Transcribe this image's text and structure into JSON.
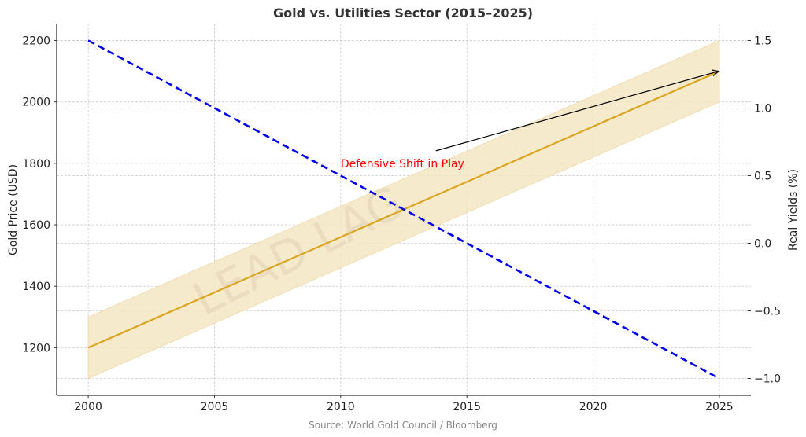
{
  "chart_data": {
    "type": "line",
    "title": "Gold vs. Utilities Sector (2015–2025)",
    "xlabel": "",
    "ylabel_left": "Gold Price (USD)",
    "ylabel_right": "Real Yields (%)",
    "xlim": [
      1998.75,
      2026.25
    ],
    "ylim_left": [
      1045,
      2255
    ],
    "ylim_right": [
      -1.125,
      1.625
    ],
    "x_ticks": [
      2000,
      2005,
      2010,
      2015,
      2020,
      2025
    ],
    "x_tick_labels": [
      "2000",
      "2005",
      "2010",
      "2015",
      "2020",
      "2025"
    ],
    "y_left_ticks": [
      1200,
      1400,
      1600,
      1800,
      2000,
      2200
    ],
    "y_left_tick_labels": [
      "1200",
      "1400",
      "1600",
      "1800",
      "2000",
      "2200"
    ],
    "y_right_ticks": [
      -1.0,
      -0.5,
      0.0,
      0.5,
      1.0,
      1.5
    ],
    "y_right_tick_labels": [
      "−1.0",
      "−0.5",
      "0.0",
      "0.5",
      "1.0",
      "1.5"
    ],
    "grid": true,
    "series": [
      {
        "name": "Gold Price",
        "axis": "left",
        "style": "solid",
        "color": "#DAA520",
        "x": [
          2000,
          2025
        ],
        "values": [
          1200,
          2100
        ],
        "band": {
          "lower": [
            1100,
            2000
          ],
          "upper": [
            1300,
            2200
          ],
          "color": "#F5E6C4"
        }
      },
      {
        "name": "Real Yields",
        "axis": "right",
        "style": "dashed",
        "color": "#0000EE",
        "x": [
          2000,
          2025
        ],
        "values": [
          1.5,
          -1.0
        ]
      }
    ],
    "annotation": {
      "text": "Defensive Shift in Play",
      "color": "#FF0000",
      "text_at": {
        "x": 2010,
        "y": 1800
      },
      "arrow_to": {
        "x": 2025,
        "y": 2100
      }
    },
    "watermark": "LEAD LAG",
    "source": "Source: World Gold Council / Bloomberg"
  }
}
